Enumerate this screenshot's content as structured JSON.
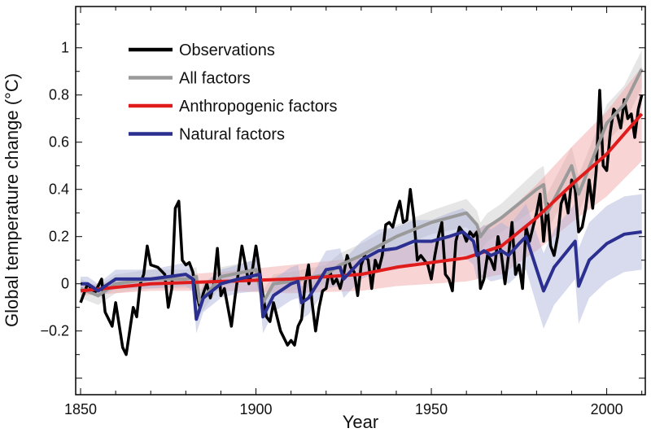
{
  "chart_data": {
    "type": "line",
    "title": "",
    "xlabel": "Year",
    "ylabel": "Global temperature change (°C)",
    "xlim": [
      1848.6,
      2011
    ],
    "ylim": [
      -0.47,
      1.175
    ],
    "xticks": [
      1850,
      1900,
      1950,
      2000
    ],
    "yticks": [
      -0.2,
      0,
      0.2,
      0.4,
      0.6,
      0.8,
      1
    ],
    "ytick_labels": [
      "−0.2",
      "0",
      "0.2",
      "0.4",
      "0.6",
      "0.8",
      "1"
    ],
    "grid": false,
    "legend_position": "top-left",
    "series": [
      {
        "name": "Observations",
        "color": "#000000",
        "x": [
          1850,
          1852,
          1854,
          1856,
          1857,
          1859,
          1860,
          1862,
          1863,
          1865,
          1866,
          1867,
          1868,
          1869,
          1870,
          1872,
          1874,
          1875,
          1876,
          1877,
          1878,
          1879,
          1880,
          1881,
          1882,
          1883,
          1884,
          1885,
          1886,
          1887,
          1888,
          1889,
          1890,
          1891,
          1893,
          1894,
          1896,
          1897,
          1898,
          1899,
          1900,
          1901,
          1902,
          1903,
          1904,
          1905,
          1907,
          1909,
          1910,
          1911,
          1912,
          1913,
          1914,
          1915,
          1916,
          1917,
          1918,
          1919,
          1920,
          1921,
          1922,
          1923,
          1924,
          1925,
          1926,
          1927,
          1928,
          1929,
          1930,
          1931,
          1932,
          1933,
          1934,
          1935,
          1936,
          1937,
          1938,
          1939,
          1940,
          1941,
          1942,
          1943,
          1944,
          1945,
          1946,
          1947,
          1948,
          1949,
          1950,
          1951,
          1952,
          1953,
          1954,
          1955,
          1956,
          1957,
          1958,
          1959,
          1960,
          1961,
          1962,
          1963,
          1964,
          1965,
          1966,
          1967,
          1968,
          1969,
          1970,
          1971,
          1972,
          1973,
          1974,
          1975,
          1976,
          1977,
          1978,
          1979,
          1980,
          1981,
          1982,
          1983,
          1984,
          1985,
          1986,
          1987,
          1988,
          1989,
          1990,
          1991,
          1992,
          1993,
          1994,
          1995,
          1996,
          1997,
          1998,
          1999,
          2000,
          2001,
          2002,
          2003,
          2004,
          2005,
          2006,
          2007,
          2008,
          2009,
          2010
        ],
        "y": [
          -0.08,
          0.0,
          -0.04,
          0.02,
          -0.12,
          -0.18,
          -0.08,
          -0.27,
          -0.3,
          -0.1,
          -0.14,
          0.0,
          0.04,
          0.16,
          0.08,
          0.07,
          0.04,
          -0.1,
          -0.02,
          0.32,
          0.35,
          0.1,
          0.08,
          0.09,
          0.05,
          -0.04,
          -0.1,
          -0.04,
          0.0,
          -0.06,
          0.0,
          0.15,
          -0.05,
          -0.02,
          -0.18,
          -0.06,
          0.16,
          0.08,
          0.0,
          0.06,
          0.16,
          0.06,
          -0.05,
          -0.14,
          -0.16,
          -0.08,
          -0.2,
          -0.26,
          -0.24,
          -0.26,
          -0.18,
          -0.15,
          0.0,
          0.08,
          -0.08,
          -0.2,
          -0.1,
          -0.03,
          -0.02,
          0.06,
          0.0,
          0.02,
          -0.02,
          0.04,
          0.12,
          0.07,
          0.05,
          -0.05,
          0.08,
          0.12,
          0.1,
          -0.02,
          0.1,
          0.06,
          0.12,
          0.25,
          0.26,
          0.24,
          0.3,
          0.35,
          0.26,
          0.27,
          0.4,
          0.28,
          0.1,
          0.12,
          0.1,
          0.08,
          0.02,
          0.12,
          0.2,
          0.26,
          0.04,
          0.02,
          -0.03,
          0.18,
          0.24,
          0.22,
          0.18,
          0.22,
          0.2,
          0.22,
          -0.02,
          0.02,
          0.12,
          0.1,
          0.06,
          0.2,
          0.12,
          0.0,
          0.12,
          0.26,
          0.04,
          0.08,
          -0.02,
          0.24,
          0.18,
          0.24,
          0.3,
          0.38,
          0.18,
          0.34,
          0.16,
          0.12,
          0.2,
          0.34,
          0.38,
          0.3,
          0.44,
          0.4,
          0.22,
          0.24,
          0.32,
          0.44,
          0.32,
          0.48,
          0.82,
          0.5,
          0.48,
          0.64,
          0.74,
          0.72,
          0.66,
          0.78,
          0.7,
          0.72,
          0.62,
          0.74,
          0.8
        ]
      },
      {
        "name": "All factors",
        "color": "#9a9a9a",
        "band_color": "#c8c8c8",
        "x": [
          1850,
          1855,
          1860,
          1870,
          1880,
          1883,
          1884,
          1890,
          1900,
          1902,
          1905,
          1910,
          1920,
          1924,
          1930,
          1940,
          1950,
          1960,
          1963,
          1964,
          1966,
          1970,
          1975,
          1980,
          1982,
          1983,
          1990,
          1992,
          2000,
          2005,
          2010
        ],
        "y": [
          -0.02,
          -0.05,
          0.0,
          0.02,
          0.02,
          0.03,
          -0.08,
          0.03,
          0.06,
          -0.08,
          0.0,
          0.01,
          0.04,
          0.08,
          0.12,
          0.2,
          0.26,
          0.3,
          0.25,
          0.2,
          0.24,
          0.28,
          0.34,
          0.4,
          0.42,
          0.3,
          0.5,
          0.38,
          0.68,
          0.76,
          0.91
        ],
        "band_halfwidth": [
          0.04,
          0.04,
          0.04,
          0.04,
          0.04,
          0.04,
          0.05,
          0.04,
          0.04,
          0.05,
          0.04,
          0.04,
          0.04,
          0.05,
          0.05,
          0.05,
          0.05,
          0.06,
          0.06,
          0.06,
          0.06,
          0.06,
          0.07,
          0.08,
          0.08,
          0.08,
          0.08,
          0.08,
          0.08,
          0.08,
          0.08
        ]
      },
      {
        "name": "Anthropogenic factors",
        "color": "#e01b1b",
        "band_color": "#f2a0a0",
        "x": [
          1850,
          1870,
          1890,
          1910,
          1930,
          1940,
          1950,
          1960,
          1970,
          1980,
          1990,
          2000,
          2010
        ],
        "y": [
          -0.03,
          0.0,
          0.01,
          0.02,
          0.04,
          0.07,
          0.09,
          0.11,
          0.16,
          0.28,
          0.42,
          0.55,
          0.72
        ],
        "band_halfwidth": [
          0.02,
          0.03,
          0.04,
          0.06,
          0.07,
          0.08,
          0.09,
          0.1,
          0.12,
          0.14,
          0.16,
          0.18,
          0.2
        ]
      },
      {
        "name": "Natural factors",
        "color": "#2b2f8f",
        "band_color": "#a8acd6",
        "x": [
          1850,
          1852,
          1855,
          1860,
          1870,
          1880,
          1882,
          1883,
          1885,
          1890,
          1895,
          1901,
          1902,
          1905,
          1910,
          1912,
          1913,
          1915,
          1920,
          1924,
          1925,
          1930,
          1935,
          1940,
          1945,
          1950,
          1955,
          1959,
          1962,
          1963,
          1965,
          1967,
          1970,
          1972,
          1975,
          1977,
          1982,
          1985,
          1991,
          1992,
          1995,
          2000,
          2005,
          2010
        ],
        "y": [
          0.0,
          0.0,
          -0.03,
          0.02,
          0.02,
          0.04,
          0.02,
          -0.15,
          -0.06,
          0.0,
          0.02,
          0.04,
          -0.14,
          -0.05,
          0.0,
          0.01,
          -0.08,
          -0.06,
          0.06,
          0.07,
          0.02,
          0.1,
          0.14,
          0.15,
          0.18,
          0.18,
          0.2,
          0.22,
          0.18,
          0.12,
          0.14,
          0.12,
          0.14,
          0.12,
          0.17,
          0.2,
          -0.03,
          0.07,
          0.18,
          -0.01,
          0.1,
          0.17,
          0.21,
          0.22
        ],
        "band_halfwidth": [
          0.03,
          0.03,
          0.03,
          0.04,
          0.04,
          0.05,
          0.05,
          0.06,
          0.06,
          0.06,
          0.06,
          0.07,
          0.07,
          0.07,
          0.07,
          0.07,
          0.07,
          0.07,
          0.08,
          0.08,
          0.08,
          0.08,
          0.09,
          0.09,
          0.09,
          0.09,
          0.1,
          0.1,
          0.1,
          0.1,
          0.11,
          0.11,
          0.12,
          0.12,
          0.13,
          0.14,
          0.16,
          0.16,
          0.16,
          0.16,
          0.16,
          0.16,
          0.16,
          0.16
        ]
      }
    ]
  }
}
